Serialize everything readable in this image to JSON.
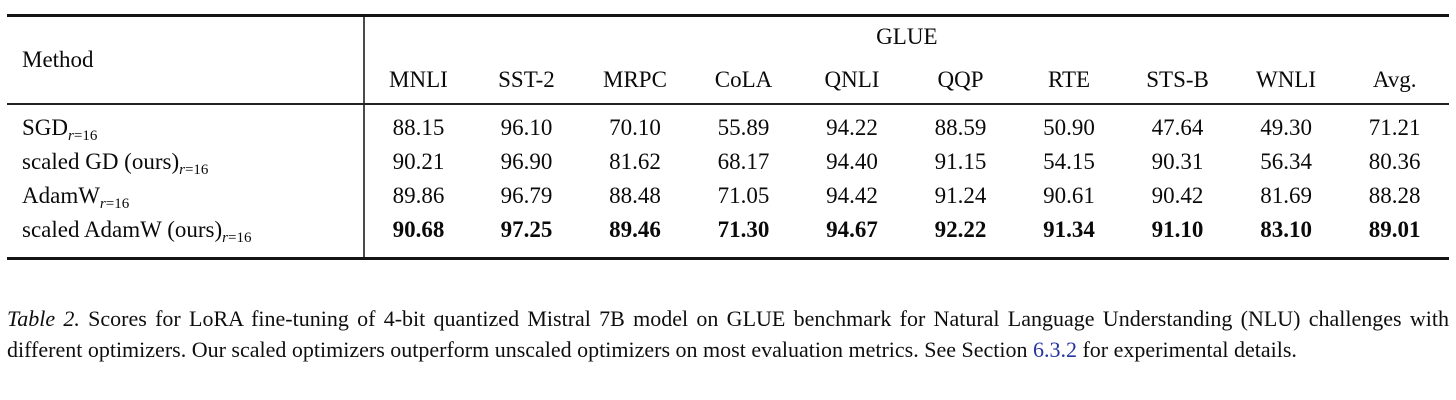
{
  "table": {
    "method_header": "Method",
    "group_header": "GLUE",
    "columns": [
      "MNLI",
      "SST-2",
      "MRPC",
      "CoLA",
      "QNLI",
      "QQP",
      "RTE",
      "STS-B",
      "WNLI",
      "Avg."
    ],
    "subscript": {
      "var": "r",
      "eq": "=16"
    },
    "rows": [
      {
        "method": "SGD",
        "bold": false,
        "values": [
          "88.15",
          "96.10",
          "70.10",
          "55.89",
          "94.22",
          "88.59",
          "50.90",
          "47.64",
          "49.30",
          "71.21"
        ]
      },
      {
        "method": "scaled GD (ours)",
        "bold": false,
        "values": [
          "90.21",
          "96.90",
          "81.62",
          "68.17",
          "94.40",
          "91.15",
          "54.15",
          "90.31",
          "56.34",
          "80.36"
        ]
      },
      {
        "method": "AdamW",
        "bold": false,
        "values": [
          "89.86",
          "96.79",
          "88.48",
          "71.05",
          "94.42",
          "91.24",
          "90.61",
          "90.42",
          "81.69",
          "88.28"
        ]
      },
      {
        "method": "scaled AdamW (ours)",
        "bold": true,
        "values": [
          "90.68",
          "97.25",
          "89.46",
          "71.30",
          "94.67",
          "92.22",
          "91.34",
          "91.10",
          "83.10",
          "89.01"
        ]
      }
    ]
  },
  "caption": {
    "label": "Table 2.",
    "before_link": " Scores for LoRA fine-tuning of 4-bit quantized Mistral 7B model on GLUE benchmark for Natural Language Understanding (NLU) challenges with different optimizers.  Our scaled optimizers outperform unscaled optimizers on most evaluation metrics.  See Section ",
    "link": "6.3.2",
    "after_link": " for experimental details.",
    "link_color": "#2634a2"
  }
}
